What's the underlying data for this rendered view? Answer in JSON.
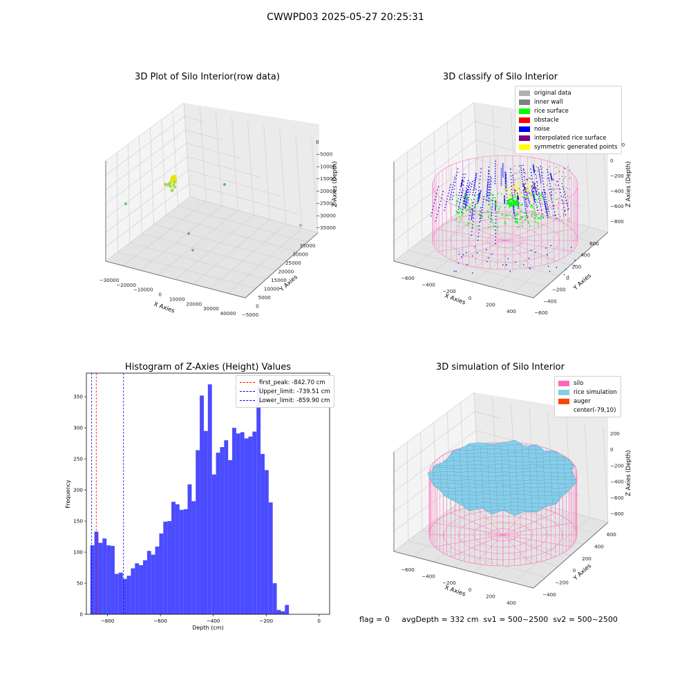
{
  "figure": {
    "suptitle": "CWWPD03 2025-05-27 20:25:31",
    "footer": "flag = 0     avgDepth = 332 cm  sv1 = 500~2500  sv2 = 500~2500"
  },
  "chart_data": [
    {
      "type": "scatter",
      "projection": "3d",
      "title": "3D Plot of Silo Interior(row data)",
      "xlabel": "X Axies",
      "ylabel": "Y Axies",
      "zlabel": "Z Axies (Depth)",
      "xticks": [
        "−30000",
        "−20000",
        "−10000",
        "0",
        "10000",
        "20000",
        "30000",
        "40000"
      ],
      "yticks": [
        "−5000",
        "0",
        "5000",
        "10000",
        "15000",
        "20000",
        "25000",
        "30000",
        "35000"
      ],
      "zticks": [
        "0",
        "−5000",
        "−10000",
        "−15000",
        "−20000",
        "−25000",
        "−30000",
        "−35000"
      ],
      "grid": true,
      "clusters": [
        {
          "color": "#e6e60a",
          "points": 16
        },
        {
          "color": "#a8d84a",
          "points": 12
        }
      ],
      "outliers": [
        {
          "color": "#6cc86c"
        },
        {
          "color": "#5cb87c"
        },
        {
          "color": "#9a8ad0"
        },
        {
          "color": "#b08ad0"
        },
        {
          "color": "#b0b0b0"
        }
      ]
    },
    {
      "type": "scatter",
      "projection": "3d",
      "title": "3D classify of Silo Interior",
      "xlabel": "X Axies",
      "ylabel": "Y Axies",
      "zlabel": "Z Axies (Depth)",
      "xticks": [
        "−600",
        "−400",
        "−200",
        "0",
        "200",
        "400"
      ],
      "yticks": [
        "−600",
        "−400",
        "−200",
        "0",
        "200",
        "400",
        "600"
      ],
      "zticks": [
        "0",
        "−200",
        "−400",
        "−600",
        "−800"
      ],
      "ztick_extra": "00",
      "grid": true,
      "legend_position": "upper-right",
      "legend": [
        {
          "label": "original data",
          "color": "#b0b0b0"
        },
        {
          "label": "inner wall",
          "color": "#808080"
        },
        {
          "label": "rice surface",
          "color": "#00ff00"
        },
        {
          "label": "obstacle",
          "color": "#ff0000"
        },
        {
          "label": "noise",
          "color": "#0000ee"
        },
        {
          "label": "interpolated rice surface",
          "color": "#800080"
        },
        {
          "label": "symmetric generated points",
          "color": "#ffff00"
        }
      ],
      "silo_wire_color": "#ff77c8"
    },
    {
      "type": "bar",
      "title": "Histogram of Z-Axies (Height) Values",
      "xlabel": "Depth (cm)",
      "ylabel": "Frequency",
      "bin_start": -865,
      "bin_width": 15.33,
      "values": [
        111,
        133,
        115,
        122,
        111,
        110,
        65,
        67,
        57,
        62,
        74,
        82,
        79,
        87,
        102,
        96,
        109,
        130,
        149,
        150,
        181,
        177,
        168,
        169,
        209,
        182,
        264,
        352,
        295,
        370,
        225,
        260,
        269,
        280,
        248,
        300,
        291,
        293,
        283,
        286,
        294,
        367,
        258,
        232,
        180,
        50,
        7,
        5,
        15
      ],
      "bar_color": "#4b4bff",
      "xlim": [
        -880,
        40
      ],
      "ylim": [
        0,
        388
      ],
      "xticks": [
        -800,
        -600,
        -400,
        -200,
        0
      ],
      "xtick_labels": [
        "−800",
        "−600",
        "−400",
        "−200",
        "0"
      ],
      "yticks": [
        0,
        50,
        100,
        150,
        200,
        250,
        300,
        350
      ],
      "ytick_labels": [
        "0",
        "50",
        "100",
        "150",
        "200",
        "250",
        "300",
        "350"
      ],
      "vlines": [
        {
          "x": -842.7,
          "color": "#ff0000",
          "label": "first_peak: -842.70 cm"
        },
        {
          "x": -739.51,
          "color": "#0000ff",
          "label": "Upper_limit: -739.51 cm"
        },
        {
          "x": -859.9,
          "color": "#0000ff",
          "label": "Lower_limit: -859.90 cm"
        }
      ],
      "legend_position": "upper-right"
    },
    {
      "type": "surface",
      "projection": "3d",
      "title": "3D simulation of Silo Interior",
      "xlabel": "X Axies",
      "ylabel": "Y Axies",
      "zlabel": "Z Axies (Depth)",
      "xticks": [
        "−600",
        "−400",
        "−200",
        "0",
        "200",
        "400"
      ],
      "yticks": [
        "−400",
        "−200",
        "0",
        "200",
        "400",
        "600"
      ],
      "zticks": [
        "200",
        "0",
        "−200",
        "−400",
        "−600",
        "−800"
      ],
      "grid": true,
      "legend_position": "upper-right",
      "legend": [
        {
          "label": "silo",
          "color": "#ff69b4"
        },
        {
          "label": "rice simulation",
          "color": "#87ceeb"
        },
        {
          "label": "auger",
          "color": "#ff4500"
        },
        {
          "label": "center(-79,10)",
          "color": "#ffffff"
        }
      ]
    }
  ]
}
